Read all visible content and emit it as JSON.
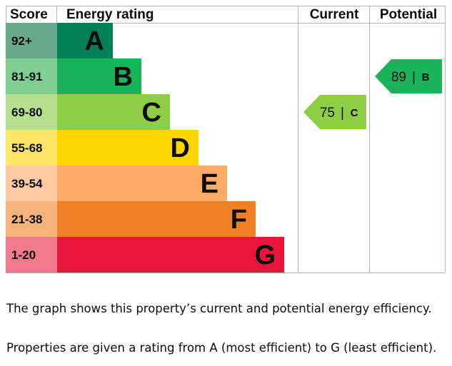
{
  "chart_data": {
    "type": "bar",
    "headers": {
      "score": "Score",
      "rating": "Energy rating",
      "current": "Current",
      "potential": "Potential"
    },
    "bands": [
      {
        "letter": "A",
        "range": "92+",
        "color": "#008054"
      },
      {
        "letter": "B",
        "range": "81-91",
        "color": "#19b459"
      },
      {
        "letter": "C",
        "range": "69-80",
        "color": "#8dce46"
      },
      {
        "letter": "D",
        "range": "55-68",
        "color": "#ffd500"
      },
      {
        "letter": "E",
        "range": "39-54",
        "color": "#fcaa65"
      },
      {
        "letter": "F",
        "range": "21-38",
        "color": "#ef8023"
      },
      {
        "letter": "G",
        "range": "1-20",
        "color": "#e9153b"
      }
    ],
    "score_cell_colors": [
      "#6aa88a",
      "#7fcf93",
      "#b5df8c",
      "#ffe566",
      "#fdc99e",
      "#f5b27a",
      "#f2788b"
    ],
    "current": {
      "value": 75,
      "rating": "C",
      "color": "#8dce46"
    },
    "potential": {
      "value": 89,
      "rating": "B",
      "color": "#19b459"
    }
  },
  "description": {
    "line1": "The graph shows this property’s current and potential energy efficiency.",
    "line2": "Properties are given a rating from A (most efficient) to G (least efficient)."
  }
}
